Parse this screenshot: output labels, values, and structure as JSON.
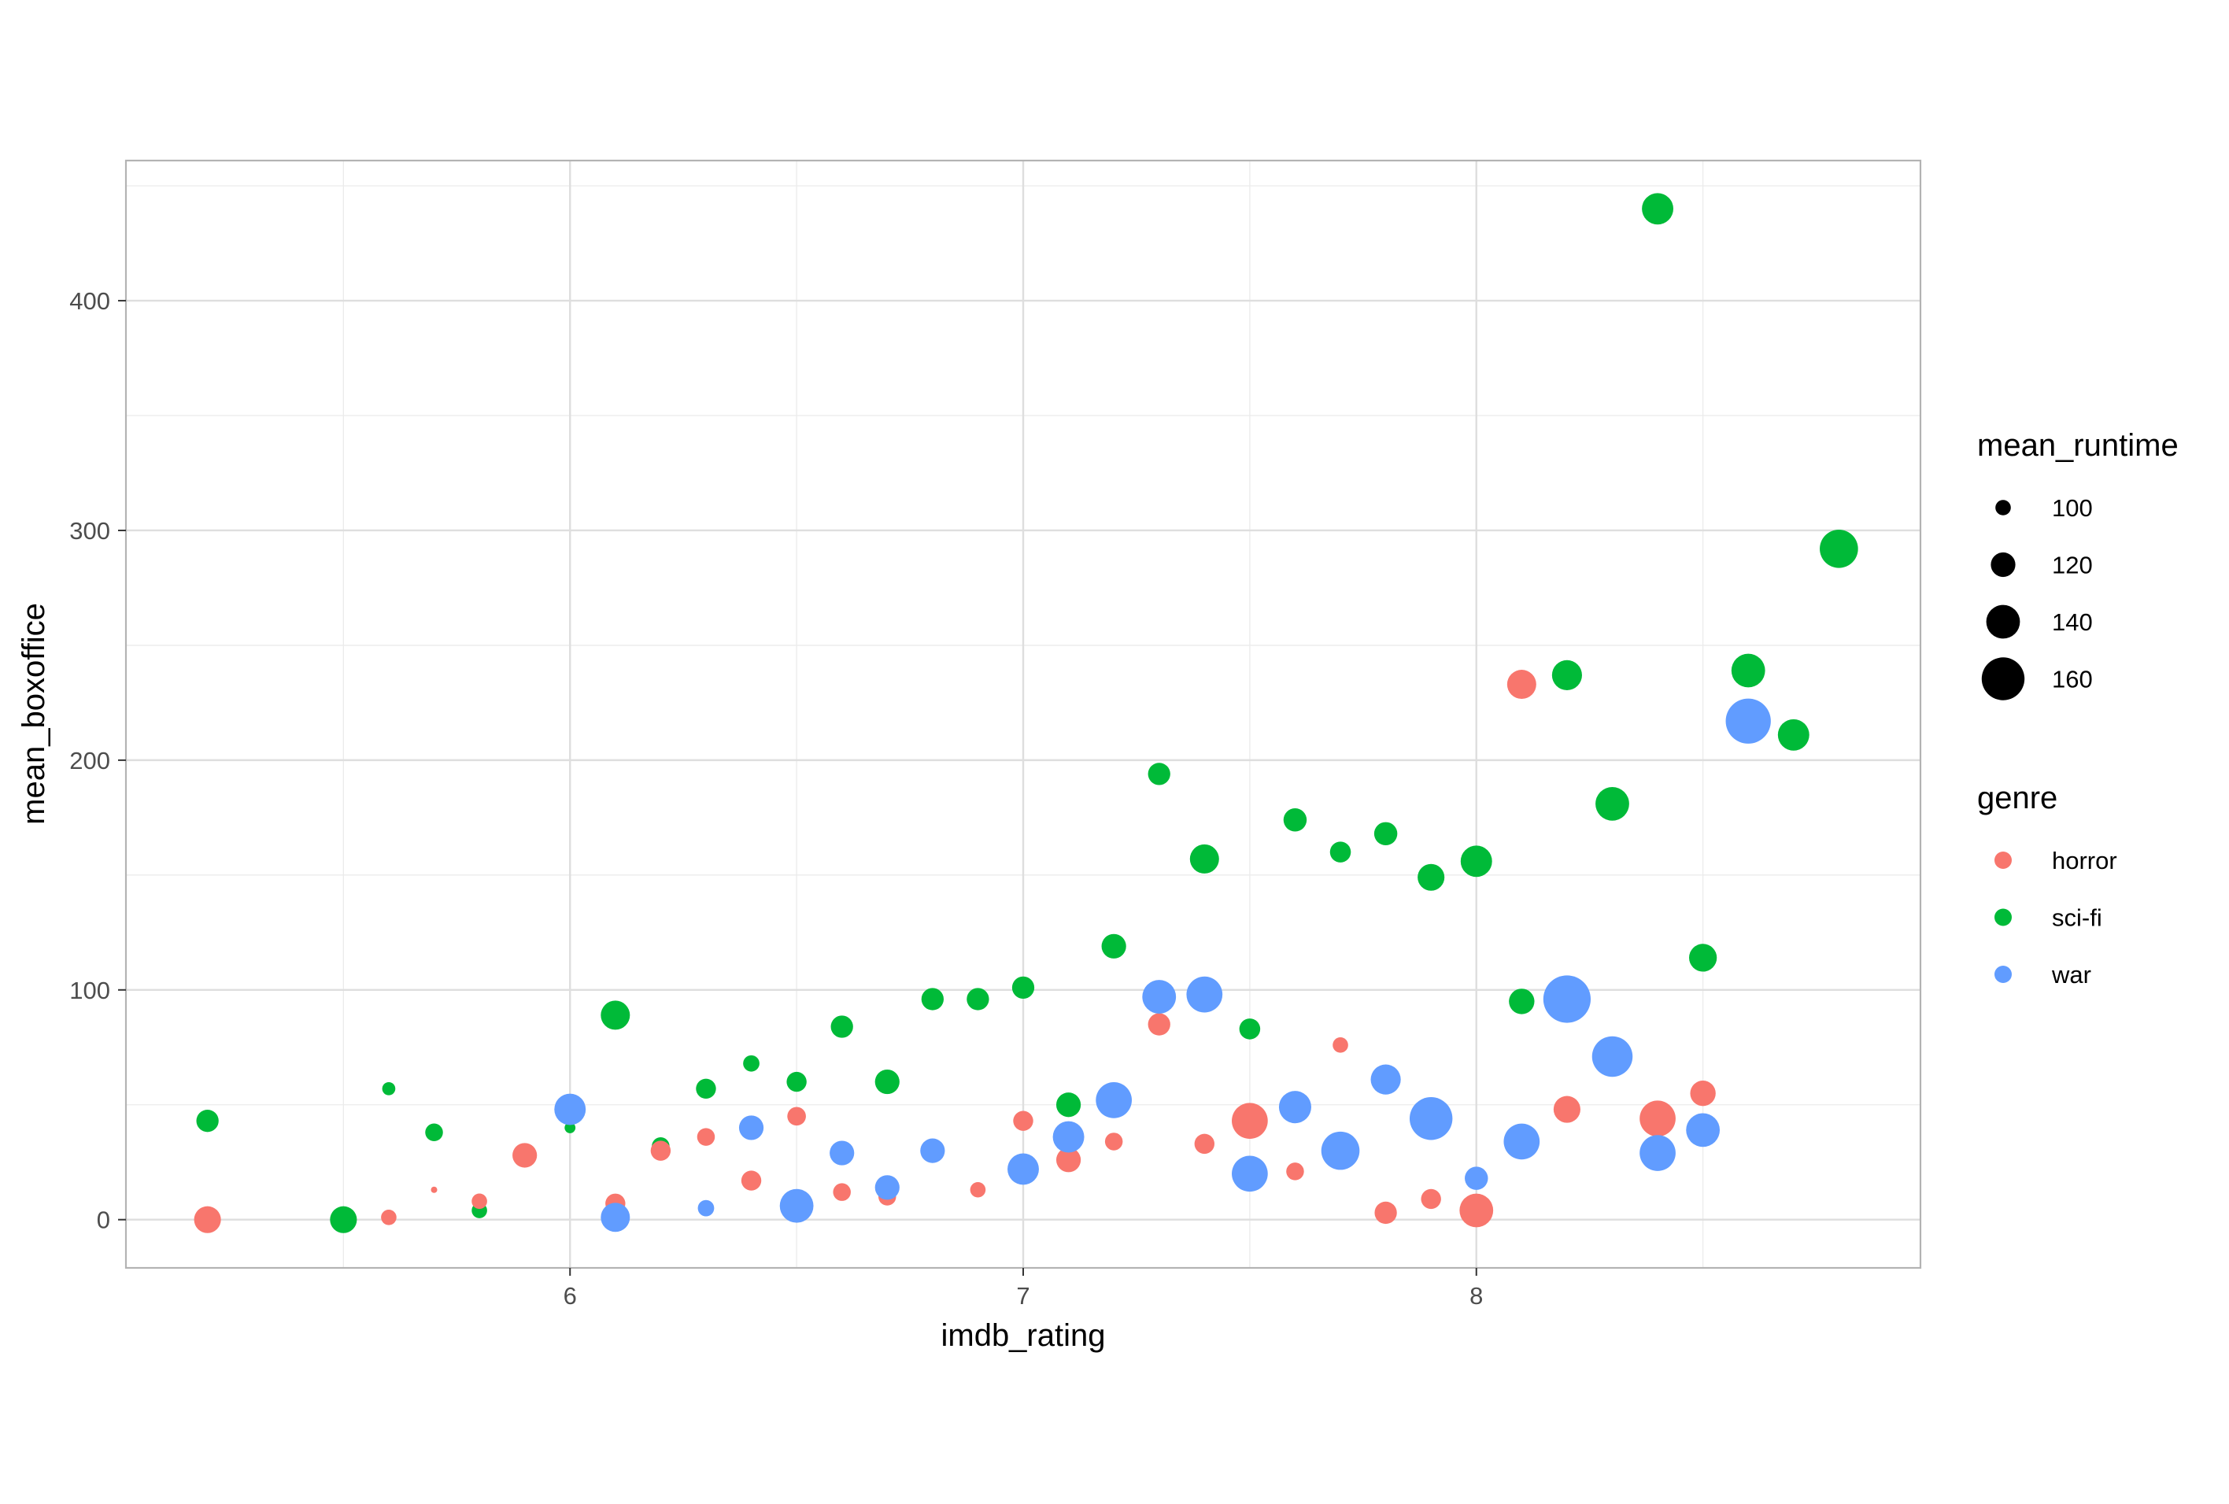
{
  "chart_data": {
    "type": "scatter",
    "xlabel": "imdb_rating",
    "ylabel": "mean_boxoffice",
    "xlim": [
      5.02,
      8.98
    ],
    "ylim": [
      -21,
      461
    ],
    "x_ticks": [
      6,
      7,
      8
    ],
    "y_ticks": [
      0,
      100,
      200,
      300,
      400
    ],
    "grid": true,
    "legend_position": "right",
    "size_legend": {
      "title": "mean_runtime",
      "entries": [
        {
          "label": "100",
          "value": 100
        },
        {
          "label": "120",
          "value": 120
        },
        {
          "label": "140",
          "value": 140
        },
        {
          "label": "160",
          "value": 160
        }
      ]
    },
    "color_legend": {
      "title": "genre",
      "entries": [
        {
          "label": "horror",
          "color": "#F8766D"
        },
        {
          "label": "sci-fi",
          "color": "#00BA38"
        },
        {
          "label": "war",
          "color": "#619CFF"
        }
      ]
    },
    "series": [
      {
        "name": "sci-fi",
        "color": "#00BA38",
        "points": [
          {
            "x": 5.2,
            "y": 43,
            "size": 115
          },
          {
            "x": 5.5,
            "y": 0,
            "size": 125
          },
          {
            "x": 5.6,
            "y": 57,
            "size": 95
          },
          {
            "x": 5.7,
            "y": 38,
            "size": 105
          },
          {
            "x": 5.8,
            "y": 4,
            "size": 100
          },
          {
            "x": 6.0,
            "y": 40,
            "size": 90
          },
          {
            "x": 6.1,
            "y": 89,
            "size": 130
          },
          {
            "x": 6.2,
            "y": 32,
            "size": 105
          },
          {
            "x": 6.3,
            "y": 57,
            "size": 110
          },
          {
            "x": 6.4,
            "y": 68,
            "size": 102
          },
          {
            "x": 6.5,
            "y": 60,
            "size": 110
          },
          {
            "x": 6.6,
            "y": 84,
            "size": 115
          },
          {
            "x": 6.7,
            "y": 60,
            "size": 120
          },
          {
            "x": 6.8,
            "y": 96,
            "size": 115
          },
          {
            "x": 6.9,
            "y": 96,
            "size": 115
          },
          {
            "x": 7.0,
            "y": 101,
            "size": 115
          },
          {
            "x": 7.1,
            "y": 50,
            "size": 120
          },
          {
            "x": 7.2,
            "y": 119,
            "size": 120
          },
          {
            "x": 7.3,
            "y": 194,
            "size": 115
          },
          {
            "x": 7.4,
            "y": 157,
            "size": 130
          },
          {
            "x": 7.5,
            "y": 83,
            "size": 112
          },
          {
            "x": 7.6,
            "y": 174,
            "size": 117
          },
          {
            "x": 7.7,
            "y": 160,
            "size": 112
          },
          {
            "x": 7.8,
            "y": 168,
            "size": 117
          },
          {
            "x": 7.9,
            "y": 149,
            "size": 125
          },
          {
            "x": 8.0,
            "y": 156,
            "size": 135
          },
          {
            "x": 8.1,
            "y": 95,
            "size": 122
          },
          {
            "x": 8.2,
            "y": 237,
            "size": 132
          },
          {
            "x": 8.3,
            "y": 181,
            "size": 140
          },
          {
            "x": 8.4,
            "y": 440,
            "size": 135
          },
          {
            "x": 8.5,
            "y": 114,
            "size": 127
          },
          {
            "x": 8.6,
            "y": 239,
            "size": 140
          },
          {
            "x": 8.7,
            "y": 211,
            "size": 135
          },
          {
            "x": 8.8,
            "y": 292,
            "size": 150
          }
        ]
      },
      {
        "name": "horror",
        "color": "#F8766D",
        "points": [
          {
            "x": 5.2,
            "y": 0,
            "size": 125
          },
          {
            "x": 5.6,
            "y": 1,
            "size": 100
          },
          {
            "x": 5.7,
            "y": 13,
            "size": 80
          },
          {
            "x": 5.8,
            "y": 8,
            "size": 100
          },
          {
            "x": 5.9,
            "y": 28,
            "size": 120
          },
          {
            "x": 6.1,
            "y": 7,
            "size": 110
          },
          {
            "x": 6.2,
            "y": 30,
            "size": 110
          },
          {
            "x": 6.3,
            "y": 36,
            "size": 105
          },
          {
            "x": 6.4,
            "y": 17,
            "size": 110
          },
          {
            "x": 6.5,
            "y": 45,
            "size": 107
          },
          {
            "x": 6.6,
            "y": 12,
            "size": 105
          },
          {
            "x": 6.7,
            "y": 10,
            "size": 105
          },
          {
            "x": 6.8,
            "y": 29,
            "size": 102
          },
          {
            "x": 6.9,
            "y": 13,
            "size": 100
          },
          {
            "x": 7.0,
            "y": 43,
            "size": 110
          },
          {
            "x": 7.1,
            "y": 26,
            "size": 120
          },
          {
            "x": 7.2,
            "y": 34,
            "size": 105
          },
          {
            "x": 7.3,
            "y": 85,
            "size": 115
          },
          {
            "x": 7.4,
            "y": 33,
            "size": 110
          },
          {
            "x": 7.5,
            "y": 43,
            "size": 145
          },
          {
            "x": 7.6,
            "y": 21,
            "size": 105
          },
          {
            "x": 7.7,
            "y": 76,
            "size": 100
          },
          {
            "x": 7.8,
            "y": 3,
            "size": 115
          },
          {
            "x": 7.9,
            "y": 9,
            "size": 110
          },
          {
            "x": 8.0,
            "y": 4,
            "size": 140
          },
          {
            "x": 8.1,
            "y": 233,
            "size": 130
          },
          {
            "x": 8.2,
            "y": 48,
            "size": 125
          },
          {
            "x": 8.4,
            "y": 44,
            "size": 145
          },
          {
            "x": 8.5,
            "y": 55,
            "size": 122
          }
        ]
      },
      {
        "name": "war",
        "color": "#619CFF",
        "points": [
          {
            "x": 6.0,
            "y": 48,
            "size": 135
          },
          {
            "x": 6.1,
            "y": 1,
            "size": 130
          },
          {
            "x": 6.3,
            "y": 5,
            "size": 102
          },
          {
            "x": 6.4,
            "y": 40,
            "size": 120
          },
          {
            "x": 6.5,
            "y": 6,
            "size": 140
          },
          {
            "x": 6.6,
            "y": 29,
            "size": 120
          },
          {
            "x": 6.7,
            "y": 14,
            "size": 120
          },
          {
            "x": 6.8,
            "y": 30,
            "size": 120
          },
          {
            "x": 7.0,
            "y": 22,
            "size": 135
          },
          {
            "x": 7.1,
            "y": 36,
            "size": 135
          },
          {
            "x": 7.2,
            "y": 52,
            "size": 145
          },
          {
            "x": 7.3,
            "y": 97,
            "size": 140
          },
          {
            "x": 7.4,
            "y": 98,
            "size": 145
          },
          {
            "x": 7.5,
            "y": 20,
            "size": 145
          },
          {
            "x": 7.6,
            "y": 49,
            "size": 137
          },
          {
            "x": 7.7,
            "y": 30,
            "size": 150
          },
          {
            "x": 7.8,
            "y": 61,
            "size": 132
          },
          {
            "x": 7.9,
            "y": 44,
            "size": 160
          },
          {
            "x": 8.0,
            "y": 18,
            "size": 117
          },
          {
            "x": 8.1,
            "y": 34,
            "size": 145
          },
          {
            "x": 8.2,
            "y": 96,
            "size": 170
          },
          {
            "x": 8.3,
            "y": 71,
            "size": 155
          },
          {
            "x": 8.4,
            "y": 29,
            "size": 145
          },
          {
            "x": 8.5,
            "y": 39,
            "size": 140
          },
          {
            "x": 8.6,
            "y": 217,
            "size": 165
          }
        ]
      }
    ]
  }
}
